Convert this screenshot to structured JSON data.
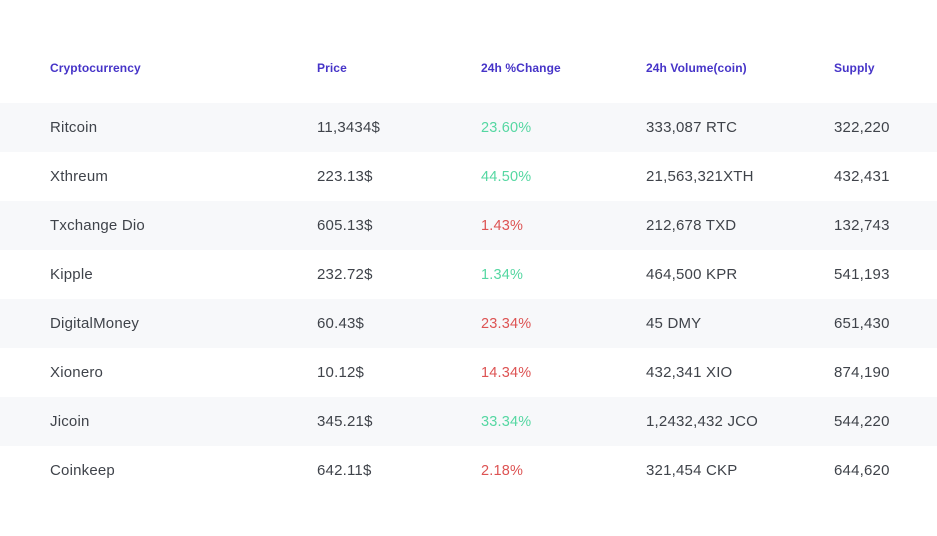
{
  "colors": {
    "accent": "#4634c8",
    "positive": "#55d7a2",
    "negative": "#dd5353",
    "stripe": "#f7f8fa",
    "text": "#3f434a"
  },
  "table": {
    "columns": [
      {
        "label": "Cryptocurrency"
      },
      {
        "label": "Price"
      },
      {
        "label": "24h %Change"
      },
      {
        "label": "24h Volume(coin)"
      },
      {
        "label": "Supply"
      }
    ],
    "rows": [
      {
        "name": "Ritcoin",
        "price": "11,3434$",
        "change": "23.60%",
        "direction": "up",
        "volume": "333,087 RTC",
        "supply": "322,220"
      },
      {
        "name": "Xthreum",
        "price": "223.13$",
        "change": "44.50%",
        "direction": "up",
        "volume": "21,563,321XTH",
        "supply": "432,431"
      },
      {
        "name": "Txchange Dio",
        "price": "605.13$",
        "change": "1.43%",
        "direction": "down",
        "volume": "212,678 TXD",
        "supply": "132,743"
      },
      {
        "name": "Kipple",
        "price": "232.72$",
        "change": "1.34%",
        "direction": "up",
        "volume": "464,500 KPR",
        "supply": "541,193"
      },
      {
        "name": "DigitalMoney",
        "price": "60.43$",
        "change": "23.34%",
        "direction": "down",
        "volume": "45 DMY",
        "supply": "651,430"
      },
      {
        "name": "Xionero",
        "price": "10.12$",
        "change": "14.34%",
        "direction": "down",
        "volume": "432,341 XIO",
        "supply": "874,190"
      },
      {
        "name": "Jicoin",
        "price": "345.21$",
        "change": "33.34%",
        "direction": "up",
        "volume": "1,2432,432 JCO",
        "supply": "544,220"
      },
      {
        "name": "Coinkeep",
        "price": "642.11$",
        "change": "2.18%",
        "direction": "down",
        "volume": "321,454 CKP",
        "supply": "644,620"
      }
    ]
  }
}
